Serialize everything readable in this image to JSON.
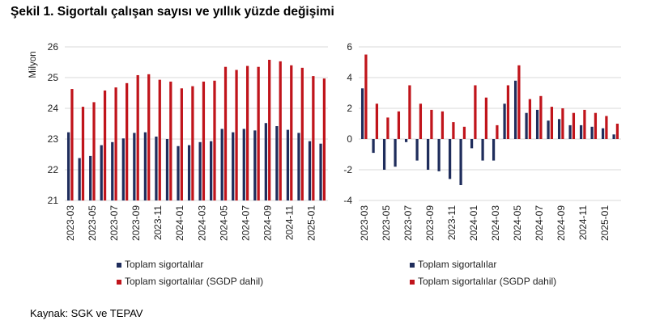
{
  "title": "Şekil 1. Sigortalı çalışan sayısı ve yıllık yüzde değişimi",
  "source": "Kaynak: SGK ve TEPAV",
  "colors": {
    "series1": "#1f2d5c",
    "series2": "#c0141b",
    "grid": "#d9d9d9"
  },
  "chart_data": [
    {
      "type": "bar",
      "ylabel": "Milyon",
      "ylim": [
        21,
        26
      ],
      "yticks": [
        "21",
        "22",
        "23",
        "24",
        "25",
        "26"
      ],
      "grid": true,
      "legend_position": "bottom",
      "categories": [
        "2023-03",
        "2023-04",
        "2023-05",
        "2023-06",
        "2023-07",
        "2023-08",
        "2023-09",
        "2023-10",
        "2023-11",
        "2023-12",
        "2024-01",
        "2024-02",
        "2024-03",
        "2024-04",
        "2024-05",
        "2024-06",
        "2024-07",
        "2024-08",
        "2024-09",
        "2024-10",
        "2024-11",
        "2024-12",
        "2025-01",
        "2025-02"
      ],
      "xtick_labels": [
        "2023-03",
        "2023-05",
        "2023-07",
        "2023-09",
        "2023-11",
        "2024-01",
        "2024-03",
        "2024-05",
        "2024-07",
        "2024-09",
        "2024-11",
        "2025-01"
      ],
      "series": [
        {
          "name": "Toplam sigortalılar",
          "values": [
            23.22,
            22.38,
            22.45,
            22.8,
            22.9,
            23.02,
            23.2,
            23.22,
            23.08,
            23.0,
            22.77,
            22.8,
            22.9,
            22.93,
            23.33,
            23.22,
            23.33,
            23.28,
            23.52,
            23.42,
            23.3,
            23.2,
            22.93,
            22.85
          ]
        },
        {
          "name": "Toplam sigortalılar (SGDP dahil)",
          "values": [
            24.63,
            24.05,
            24.2,
            24.58,
            24.68,
            24.82,
            25.08,
            25.11,
            24.93,
            24.87,
            24.65,
            24.72,
            24.87,
            24.9,
            25.35,
            25.25,
            25.38,
            25.35,
            25.58,
            25.53,
            25.4,
            25.32,
            25.05,
            24.97
          ]
        }
      ]
    },
    {
      "type": "bar",
      "ylim": [
        -4,
        6
      ],
      "yticks": [
        "-4",
        "-2",
        "0",
        "2",
        "4",
        "6"
      ],
      "grid": true,
      "legend_position": "bottom",
      "categories": [
        "2023-03",
        "2023-04",
        "2023-05",
        "2023-06",
        "2023-07",
        "2023-08",
        "2023-09",
        "2023-10",
        "2023-11",
        "2023-12",
        "2024-01",
        "2024-02",
        "2024-03",
        "2024-04",
        "2024-05",
        "2024-06",
        "2024-07",
        "2024-08",
        "2024-09",
        "2024-10",
        "2024-11",
        "2024-12",
        "2025-01",
        "2025-02"
      ],
      "xtick_labels": [
        "2023-03",
        "2023-05",
        "2023-07",
        "2023-09",
        "2023-11",
        "2024-01",
        "2024-03",
        "2024-05",
        "2024-07",
        "2024-09",
        "2024-11",
        "2025-01"
      ],
      "series": [
        {
          "name": "Toplam sigortalılar",
          "values": [
            3.3,
            -0.9,
            -2.0,
            -1.8,
            -0.2,
            -1.4,
            -2.0,
            -2.1,
            -2.6,
            -3.0,
            -0.6,
            -1.4,
            -1.4,
            2.3,
            3.8,
            1.7,
            1.9,
            1.2,
            1.3,
            0.9,
            0.9,
            0.8,
            0.7,
            0.3
          ]
        },
        {
          "name": "Toplam sigortalılar (SGDP dahil)",
          "values": [
            5.5,
            2.3,
            1.4,
            1.8,
            3.5,
            2.3,
            1.9,
            1.8,
            1.1,
            0.8,
            3.5,
            2.7,
            0.9,
            3.5,
            4.8,
            2.6,
            2.8,
            2.1,
            2.0,
            1.7,
            1.9,
            1.7,
            1.5,
            1.0
          ]
        }
      ]
    }
  ]
}
